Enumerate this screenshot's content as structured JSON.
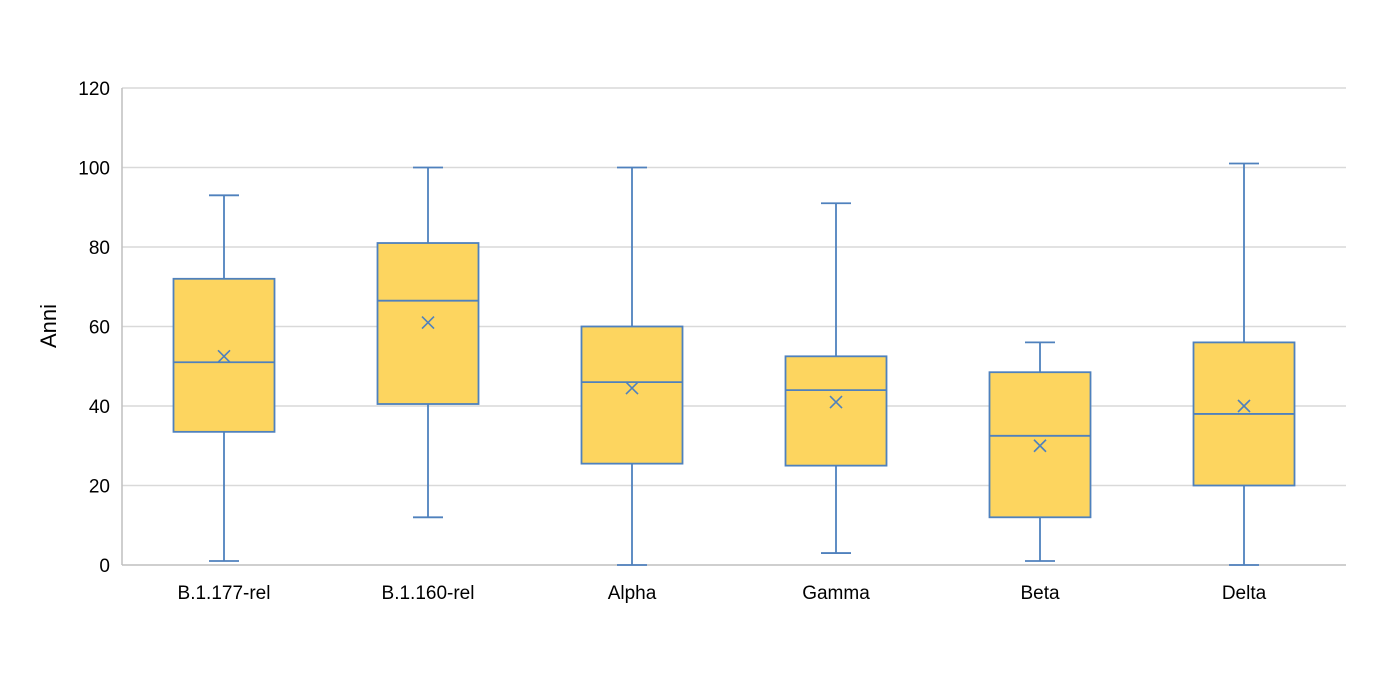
{
  "chart_data": {
    "type": "boxplot",
    "title": "",
    "xlabel": "",
    "ylabel": "Anni",
    "ylim": [
      0,
      120
    ],
    "yticks": [
      0,
      20,
      40,
      60,
      80,
      100,
      120
    ],
    "grid": true,
    "legend": "none",
    "colors": {
      "box_fill": "#FDD55F",
      "stroke": "#4F81BD",
      "grid": "#D9D9D9",
      "axis": "#BFBFBF"
    },
    "categories": [
      "B.1.177-rel",
      "B.1.160-rel",
      "Alpha",
      "Gamma",
      "Beta",
      "Delta"
    ],
    "boxes": [
      {
        "category": "B.1.177-rel",
        "min": 1,
        "q1": 33.5,
        "median": 51,
        "q3": 72,
        "max": 93,
        "mean": 52.5
      },
      {
        "category": "B.1.160-rel",
        "min": 12,
        "q1": 40.5,
        "median": 66.5,
        "q3": 81,
        "max": 100,
        "mean": 61
      },
      {
        "category": "Alpha",
        "min": 0,
        "q1": 25.5,
        "median": 46,
        "q3": 60,
        "max": 100,
        "mean": 44.5
      },
      {
        "category": "Gamma",
        "min": 3,
        "q1": 25,
        "median": 44,
        "q3": 52.5,
        "max": 91,
        "mean": 41
      },
      {
        "category": "Beta",
        "min": 1,
        "q1": 12,
        "median": 32.5,
        "q3": 48.5,
        "max": 56,
        "mean": 30
      },
      {
        "category": "Delta",
        "min": 0,
        "q1": 20,
        "median": 38,
        "q3": 56,
        "max": 101,
        "mean": 40
      }
    ]
  }
}
